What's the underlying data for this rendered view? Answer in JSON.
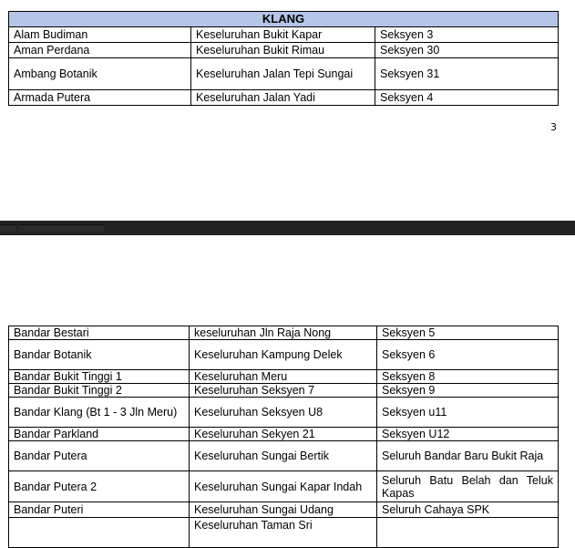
{
  "top_table": {
    "title": "KLANG",
    "rows": [
      [
        "Alam Budiman",
        "Keseluruhan Bukit Kapar",
        "Seksyen 3"
      ],
      [
        "Aman Perdana",
        "Keseluruhan Bukit Rimau",
        "Seksyen 30"
      ],
      [
        "Ambang Botanik",
        "Keseluruhan Jalan Tepi Sungai",
        "Seksyen 31"
      ],
      [
        "Armada Putera",
        "Keseluruhan Jalan Yadi",
        "Seksyen 4"
      ]
    ]
  },
  "page_number": "3",
  "bottom_table": {
    "rows": [
      [
        "Bandar Bestari",
        "keseluruhan Jln Raja Nong",
        "Seksyen 5"
      ],
      [
        "Bandar Botanik",
        "Keseluruhan Kampung Delek",
        "Seksyen 6"
      ],
      [
        "Bandar Bukit Tinggi 1",
        "Keseluruhan Meru",
        "Seksyen 8"
      ],
      [
        "Bandar Bukit Tinggi 2",
        "Keseluruhan Seksyen 7",
        "Seksyen 9"
      ],
      [
        "Bandar Klang (Bt 1 - 3 Jln Meru)",
        "Keseluruhan Seksyen U8",
        "Seksyen u11"
      ],
      [
        "Bandar Parkland",
        "Keseluruhan Sekyen 21",
        "Seksyen U12"
      ],
      [
        "Bandar Putera",
        "Keseluruhan Sungai Bertik",
        "Seluruh Bandar Baru Bukit Raja"
      ],
      [
        "Bandar Putera 2",
        "Keseluruhan Sungai Kapar Indah",
        "Seluruh Batu Belah dan Teluk Kapas"
      ],
      [
        "Bandar Puteri",
        "Keseluruhan Sungai Udang",
        "Seluruh Cahaya SPK"
      ],
      [
        "",
        "Keseluruhan Taman Sri",
        ""
      ]
    ]
  },
  "colors": {
    "header_bg": "#b4c6e7",
    "page_break_bar": "#222222"
  }
}
